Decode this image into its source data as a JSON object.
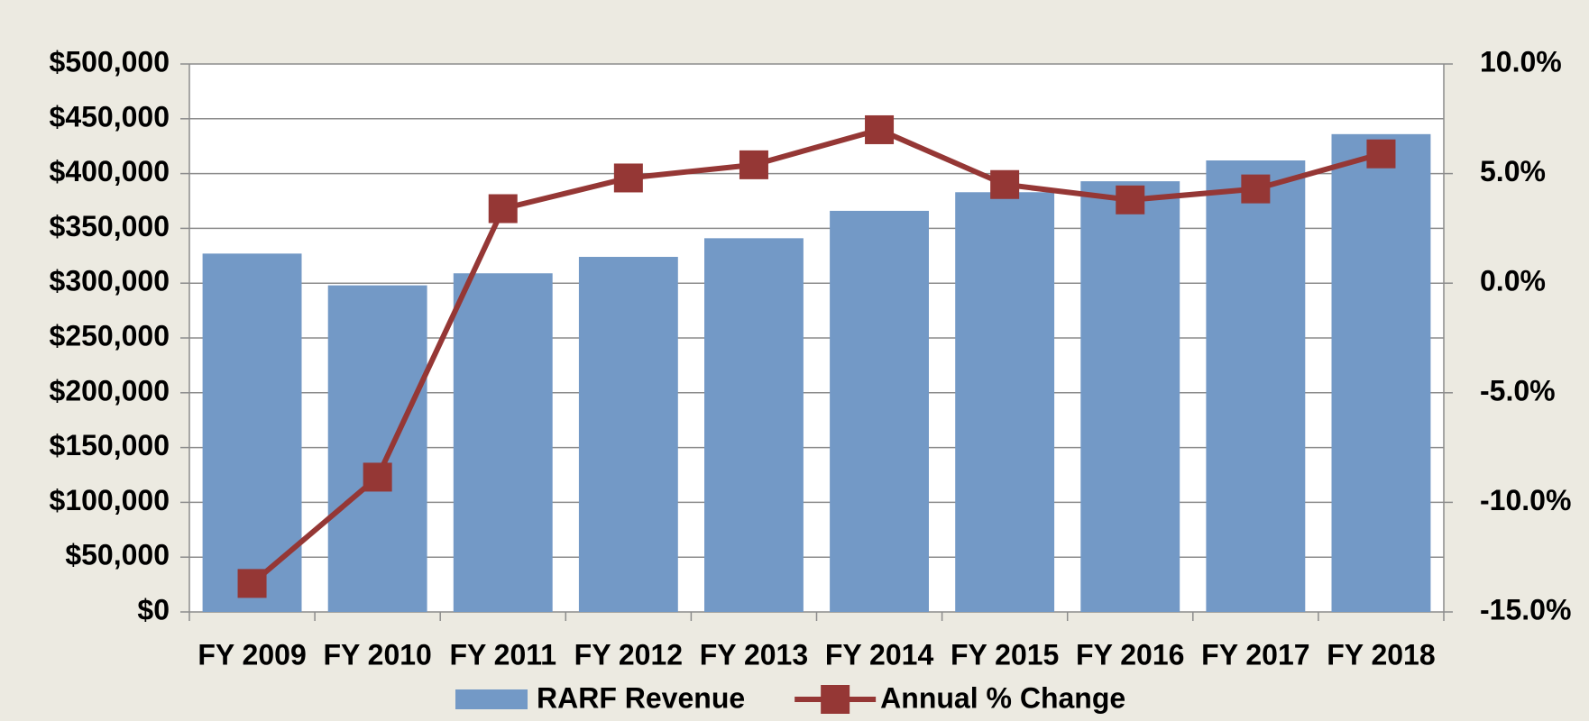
{
  "chart_data": {
    "type": "bar",
    "categories": [
      "FY 2009",
      "FY 2010",
      "FY 2011",
      "FY 2012",
      "FY 2013",
      "FY 2014",
      "FY 2015",
      "FY 2016",
      "FY 2017",
      "FY 2018"
    ],
    "series": [
      {
        "name": "RARF Revenue",
        "color": "#7399c6",
        "type": "bar",
        "values": [
          327000,
          298000,
          309000,
          324000,
          341000,
          366000,
          383000,
          393000,
          412000,
          436000
        ]
      },
      {
        "name": "Annual % Change",
        "color": "#953735",
        "type": "line",
        "axis": "y2",
        "values": [
          -13.7,
          -8.85,
          3.4,
          4.8,
          5.4,
          7.0,
          4.5,
          3.8,
          4.3,
          5.9
        ]
      }
    ],
    "ylim": [
      0,
      500000
    ],
    "yticks": [
      {
        "value": 0,
        "label": "$0"
      },
      {
        "value": 50000,
        "label": "$50,000"
      },
      {
        "value": 100000,
        "label": "$100,000"
      },
      {
        "value": 150000,
        "label": "$150,000"
      },
      {
        "value": 200000,
        "label": "$200,000"
      },
      {
        "value": 250000,
        "label": "$250,000"
      },
      {
        "value": 300000,
        "label": "$300,000"
      },
      {
        "value": 350000,
        "label": "$350,000"
      },
      {
        "value": 400000,
        "label": "$400,000"
      },
      {
        "value": 450000,
        "label": "$450,000"
      },
      {
        "value": 500000,
        "label": "$500,000"
      }
    ],
    "y2lim": [
      -15,
      10
    ],
    "y2ticks": [
      {
        "value": -15,
        "label": "-15.0%"
      },
      {
        "value": -10,
        "label": "-10.0%"
      },
      {
        "value": -5,
        "label": "-5.0%"
      },
      {
        "value": 0,
        "label": "0.0%"
      },
      {
        "value": 5,
        "label": "5.0%"
      },
      {
        "value": 10,
        "label": "10.0%"
      }
    ],
    "grid": true,
    "legend": "bottom"
  }
}
